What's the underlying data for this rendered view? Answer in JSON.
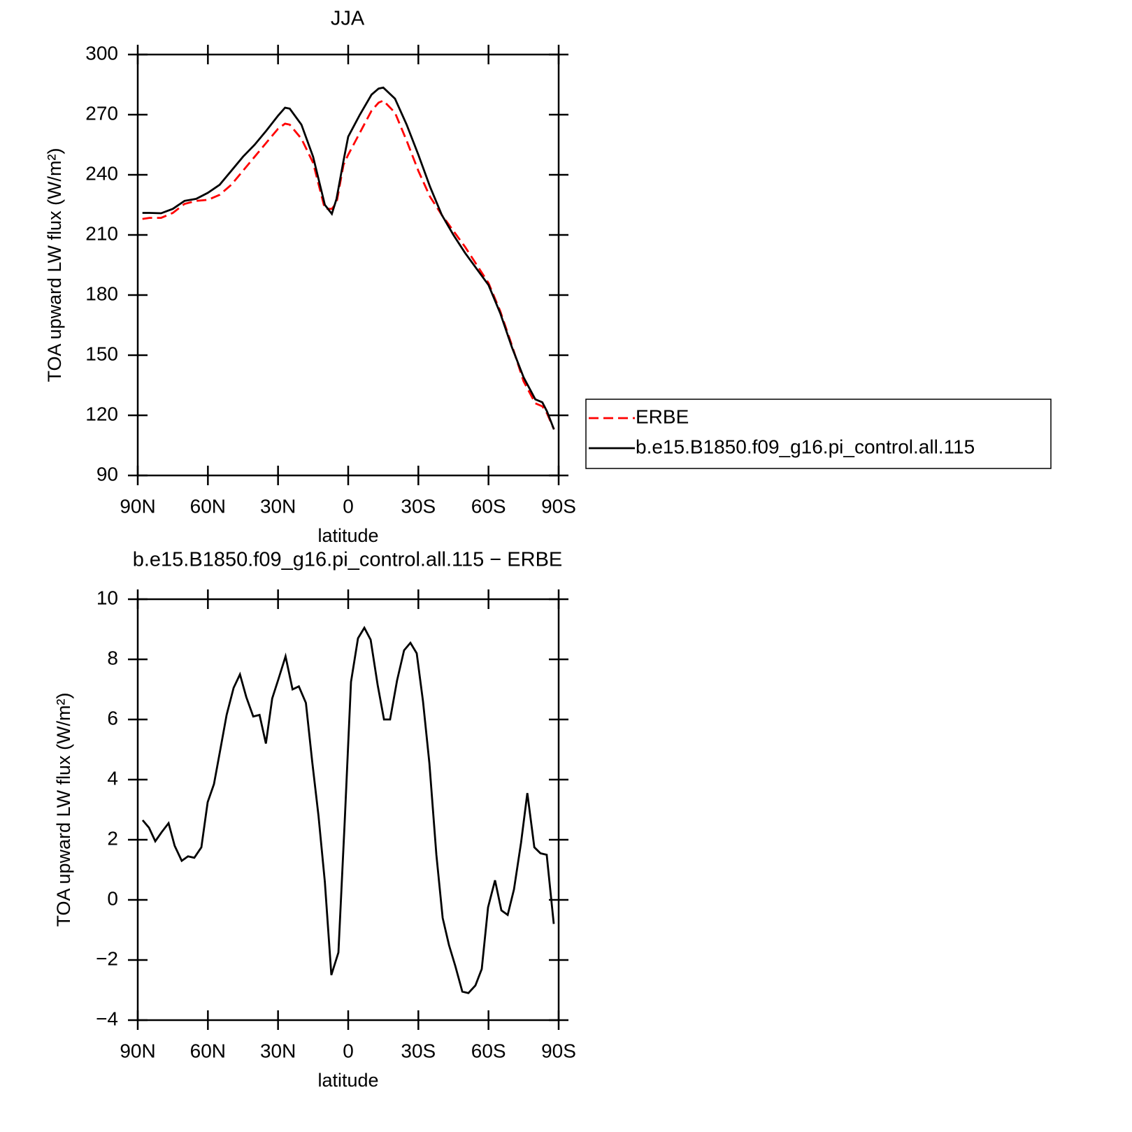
{
  "chart_data": [
    {
      "type": "line",
      "title": "JJA",
      "xlabel": "latitude",
      "ylabel": "TOA upward LW flux (W/m²)",
      "xlim": [
        90,
        -90
      ],
      "xticks": [
        {
          "value": 90,
          "label": "90N"
        },
        {
          "value": 60,
          "label": "60N"
        },
        {
          "value": 30,
          "label": "30N"
        },
        0,
        {
          "value": -30,
          "label": "30S"
        },
        {
          "value": -60,
          "label": "60S"
        },
        {
          "value": -90,
          "label": "90S"
        }
      ],
      "ylim": [
        90,
        300
      ],
      "yticks": [
        90,
        120,
        150,
        180,
        210,
        240,
        270,
        300
      ],
      "legend": "right",
      "x": [
        88,
        85,
        80,
        75,
        70,
        65,
        60,
        55,
        50,
        45,
        40,
        35,
        30,
        27,
        25,
        20,
        15,
        10,
        7,
        5,
        2,
        0,
        -5,
        -10,
        -13,
        -15,
        -20,
        -25,
        -30,
        -35,
        -40,
        -45,
        -50,
        -55,
        -60,
        -65,
        -70,
        -75,
        -80,
        -83,
        -85,
        -88
      ],
      "series": [
        {
          "name": "ERBE",
          "color": "#ff0000",
          "dashed": true,
          "values": [
            218,
            218.5,
            218.5,
            221,
            225.5,
            227,
            227.5,
            230,
            235,
            242,
            249,
            256,
            263,
            265.5,
            265,
            258,
            246,
            223,
            223,
            226,
            245,
            250,
            261,
            272,
            276,
            277,
            271,
            257,
            242,
            229,
            220,
            212,
            204,
            195,
            186,
            172,
            155,
            137,
            126,
            124.5,
            121,
            113
          ]
        },
        {
          "name": "b.e15.B1850.f09_g16.pi_control.all.115",
          "color": "#000000",
          "dashed": false,
          "values": [
            221,
            221,
            220.8,
            223,
            227,
            228,
            231,
            235,
            242,
            249,
            255,
            262,
            269.5,
            273.5,
            273,
            265,
            249,
            225,
            220.5,
            228,
            247,
            259,
            270,
            280,
            283,
            283.5,
            278,
            265,
            250,
            234,
            220,
            210,
            201,
            193,
            185,
            171,
            154,
            139,
            128,
            126.5,
            122,
            113
          ]
        }
      ]
    },
    {
      "type": "line",
      "title": "b.e15.B1850.f09_g16.pi_control.all.115 − ERBE",
      "xlabel": "latitude",
      "ylabel": "TOA upward LW flux (W/m²)",
      "xlim": [
        90,
        -90
      ],
      "xticks": [
        {
          "value": 90,
          "label": "90N"
        },
        {
          "value": 60,
          "label": "60N"
        },
        {
          "value": 30,
          "label": "30N"
        },
        0,
        {
          "value": -30,
          "label": "30S"
        },
        {
          "value": -60,
          "label": "60S"
        },
        {
          "value": -90,
          "label": "90S"
        }
      ],
      "ylim": [
        -4,
        10
      ],
      "yticks": [
        {
          "value": -4,
          "label": "−4"
        },
        {
          "value": -2,
          "label": "−2"
        },
        0,
        2,
        4,
        6,
        8,
        10
      ],
      "x": [
        87.9,
        85.2,
        82.5,
        79.8,
        76.8,
        74.2,
        71.2,
        68.5,
        65.8,
        62.8,
        60.1,
        57.4,
        54.7,
        52.0,
        49.0,
        46.3,
        43.6,
        40.6,
        37.9,
        35.2,
        32.5,
        29.8,
        26.8,
        23.8,
        21.1,
        18.1,
        15.4,
        12.7,
        10.0,
        7.2,
        4.2,
        1.5,
        -1.2,
        -4.2,
        -6.9,
        -9.6,
        -12.6,
        -15.3,
        -17.9,
        -20.9,
        -23.9,
        -26.6,
        -29.3,
        -32.0,
        -34.7,
        -37.7,
        -40.4,
        -43.1,
        -45.8,
        -48.8,
        -51.4,
        -54.4,
        -57.1,
        -59.8,
        -62.8,
        -65.5,
        -68.2,
        -70.9,
        -73.9,
        -76.6,
        -79.6,
        -82.2,
        -84.9,
        -87.9
      ],
      "series": [
        {
          "color": "#000000",
          "dashed": false,
          "values": [
            2.65,
            2.4,
            1.95,
            2.25,
            2.55,
            1.8,
            1.3,
            1.45,
            1.4,
            1.75,
            3.25,
            3.85,
            5.0,
            6.15,
            7.05,
            7.5,
            6.75,
            6.1,
            6.15,
            5.2,
            6.7,
            7.35,
            8.1,
            7.0,
            7.1,
            6.55,
            4.6,
            2.8,
            0.6,
            -2.5,
            -1.75,
            2.6,
            7.25,
            8.7,
            9.05,
            8.65,
            7.15,
            6.0,
            6.0,
            7.3,
            8.3,
            8.55,
            8.2,
            6.6,
            4.55,
            1.5,
            -0.6,
            -1.5,
            -2.2,
            -3.05,
            -3.1,
            -2.85,
            -2.3,
            -0.25,
            0.65,
            -0.35,
            -0.5,
            0.35,
            1.9,
            3.55,
            1.75,
            1.55,
            1.5,
            -0.8
          ]
        }
      ]
    }
  ]
}
